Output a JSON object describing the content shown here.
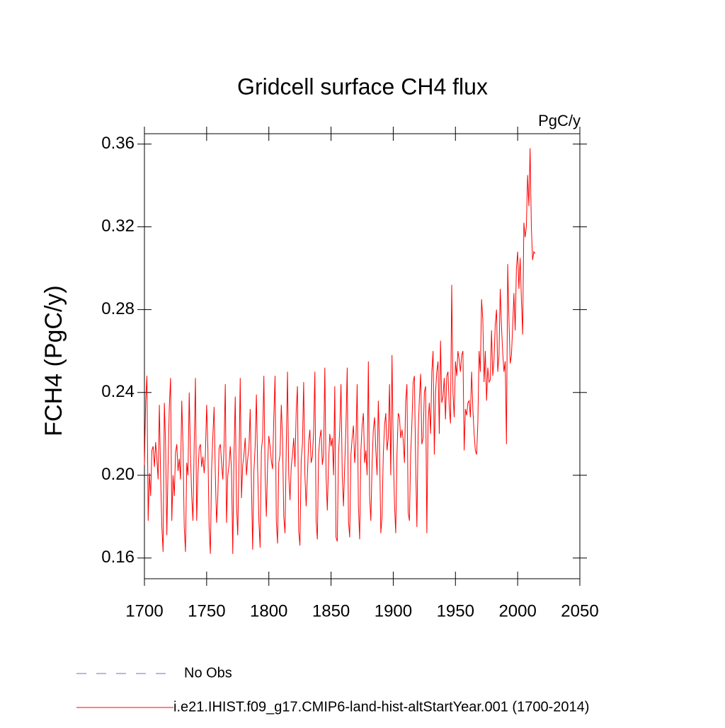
{
  "chart_data": {
    "type": "line",
    "title": "Gridcell surface CH4 flux",
    "units": "PgC/y",
    "y_label": "FCH4  (PgC/y)",
    "xlim": [
      1700,
      2050
    ],
    "xticks": [
      1700,
      1750,
      1800,
      1850,
      1900,
      1950,
      2000,
      2050
    ],
    "ylim": [
      0.15,
      0.365
    ],
    "yticks": [
      0.16,
      {
        "value": 0.2,
        "label": "0.20"
      },
      0.24,
      {
        "value": 0.28,
        "label": "0.28"
      },
      0.32,
      0.36
    ],
    "grid": false,
    "reference": {
      "name": "No Obs",
      "color": "#7a6fb8",
      "dashed": true
    },
    "x": [
      1700,
      1701,
      1702,
      1703,
      1704,
      1705,
      1706,
      1707,
      1708,
      1709,
      1710,
      1711,
      1712,
      1713,
      1714,
      1715,
      1716,
      1717,
      1718,
      1719,
      1720,
      1721,
      1722,
      1723,
      1724,
      1725,
      1726,
      1727,
      1728,
      1729,
      1730,
      1731,
      1732,
      1733,
      1734,
      1735,
      1736,
      1737,
      1738,
      1739,
      1740,
      1741,
      1742,
      1743,
      1744,
      1745,
      1746,
      1747,
      1748,
      1749,
      1750,
      1751,
      1752,
      1753,
      1754,
      1755,
      1756,
      1757,
      1758,
      1759,
      1760,
      1761,
      1762,
      1763,
      1764,
      1765,
      1766,
      1767,
      1768,
      1769,
      1770,
      1771,
      1772,
      1773,
      1774,
      1775,
      1776,
      1777,
      1778,
      1779,
      1780,
      1781,
      1782,
      1783,
      1784,
      1785,
      1786,
      1787,
      1788,
      1789,
      1790,
      1791,
      1792,
      1793,
      1794,
      1795,
      1796,
      1797,
      1798,
      1799,
      1800,
      1801,
      1802,
      1803,
      1804,
      1805,
      1806,
      1807,
      1808,
      1809,
      1810,
      1811,
      1812,
      1813,
      1814,
      1815,
      1816,
      1817,
      1818,
      1819,
      1820,
      1821,
      1822,
      1823,
      1824,
      1825,
      1826,
      1827,
      1828,
      1829,
      1830,
      1831,
      1832,
      1833,
      1834,
      1835,
      1836,
      1837,
      1838,
      1839,
      1840,
      1841,
      1842,
      1843,
      1844,
      1845,
      1846,
      1847,
      1848,
      1849,
      1850,
      1851,
      1852,
      1853,
      1854,
      1855,
      1856,
      1857,
      1858,
      1859,
      1860,
      1861,
      1862,
      1863,
      1864,
      1865,
      1866,
      1867,
      1868,
      1869,
      1870,
      1871,
      1872,
      1873,
      1874,
      1875,
      1876,
      1877,
      1878,
      1879,
      1880,
      1881,
      1882,
      1883,
      1884,
      1885,
      1886,
      1887,
      1888,
      1889,
      1890,
      1891,
      1892,
      1893,
      1894,
      1895,
      1896,
      1897,
      1898,
      1899,
      1900,
      1901,
      1902,
      1903,
      1904,
      1905,
      1906,
      1907,
      1908,
      1909,
      1910,
      1911,
      1912,
      1913,
      1914,
      1915,
      1916,
      1917,
      1918,
      1919,
      1920,
      1921,
      1922,
      1923,
      1924,
      1925,
      1926,
      1927,
      1928,
      1929,
      1930,
      1931,
      1932,
      1933,
      1934,
      1935,
      1936,
      1937,
      1938,
      1939,
      1940,
      1941,
      1942,
      1943,
      1944,
      1945,
      1946,
      1947,
      1948,
      1949,
      1950,
      1951,
      1952,
      1953,
      1954,
      1955,
      1956,
      1957,
      1958,
      1959,
      1960,
      1961,
      1962,
      1963,
      1964,
      1965,
      1966,
      1967,
      1968,
      1969,
      1970,
      1971,
      1972,
      1973,
      1974,
      1975,
      1976,
      1977,
      1978,
      1979,
      1980,
      1981,
      1982,
      1983,
      1984,
      1985,
      1986,
      1987,
      1988,
      1989,
      1990,
      1991,
      1992,
      1993,
      1994,
      1995,
      1996,
      1997,
      1998,
      1999,
      2000,
      2001,
      2002,
      2003,
      2004,
      2005,
      2006,
      2007,
      2008,
      2009,
      2010,
      2011,
      2012,
      2013,
      2014
    ],
    "series": [
      {
        "name": "i.e21.IHIST.f09_g17.CMIP6-land-hist-altStartYear.001 (1700-2014)",
        "color": "#ff0000",
        "values": [
          0.205,
          0.236,
          0.248,
          0.178,
          0.201,
          0.19,
          0.212,
          0.214,
          0.204,
          0.216,
          0.208,
          0.198,
          0.234,
          0.2,
          0.175,
          0.163,
          0.235,
          0.215,
          0.171,
          0.205,
          0.233,
          0.247,
          0.178,
          0.2,
          0.19,
          0.211,
          0.215,
          0.202,
          0.208,
          0.198,
          0.236,
          0.214,
          0.175,
          0.163,
          0.206,
          0.2,
          0.24,
          0.21,
          0.19,
          0.178,
          0.215,
          0.247,
          0.178,
          0.2,
          0.213,
          0.215,
          0.204,
          0.209,
          0.201,
          0.21,
          0.234,
          0.213,
          0.175,
          0.162,
          0.203,
          0.219,
          0.233,
          0.2,
          0.177,
          0.19,
          0.213,
          0.215,
          0.206,
          0.198,
          0.214,
          0.244,
          0.177,
          0.2,
          0.205,
          0.214,
          0.202,
          0.162,
          0.21,
          0.238,
          0.186,
          0.171,
          0.205,
          0.247,
          0.189,
          0.205,
          0.21,
          0.218,
          0.2,
          0.208,
          0.213,
          0.232,
          0.196,
          0.164,
          0.202,
          0.214,
          0.239,
          0.203,
          0.178,
          0.165,
          0.212,
          0.218,
          0.248,
          0.201,
          0.18,
          0.205,
          0.219,
          0.214,
          0.207,
          0.203,
          0.228,
          0.248,
          0.178,
          0.167,
          0.206,
          0.21,
          0.234,
          0.218,
          0.18,
          0.172,
          0.213,
          0.25,
          0.2,
          0.188,
          0.204,
          0.21,
          0.218,
          0.204,
          0.231,
          0.243,
          0.173,
          0.166,
          0.207,
          0.215,
          0.245,
          0.2,
          0.185,
          0.2,
          0.216,
          0.222,
          0.206,
          0.209,
          0.221,
          0.25,
          0.178,
          0.169,
          0.21,
          0.218,
          0.222,
          0.205,
          0.21,
          0.252,
          0.2,
          0.183,
          0.206,
          0.22,
          0.214,
          0.218,
          0.2,
          0.243,
          0.17,
          0.168,
          0.21,
          0.222,
          0.244,
          0.2,
          0.185,
          0.205,
          0.224,
          0.252,
          0.178,
          0.17,
          0.21,
          0.218,
          0.224,
          0.206,
          0.216,
          0.244,
          0.185,
          0.169,
          0.212,
          0.224,
          0.23,
          0.206,
          0.212,
          0.2,
          0.255,
          0.19,
          0.178,
          0.206,
          0.222,
          0.228,
          0.212,
          0.2,
          0.236,
          0.213,
          0.172,
          0.18,
          0.21,
          0.224,
          0.23,
          0.212,
          0.218,
          0.244,
          0.2,
          0.258,
          0.213,
          0.186,
          0.172,
          0.21,
          0.23,
          0.228,
          0.218,
          0.222,
          0.217,
          0.206,
          0.236,
          0.244,
          0.182,
          0.178,
          0.21,
          0.225,
          0.245,
          0.248,
          0.206,
          0.175,
          0.22,
          0.237,
          0.249,
          0.215,
          0.218,
          0.24,
          0.243,
          0.172,
          0.226,
          0.235,
          0.22,
          0.25,
          0.26,
          0.21,
          0.24,
          0.25,
          0.255,
          0.22,
          0.265,
          0.235,
          0.238,
          0.247,
          0.227,
          0.248,
          0.25,
          0.233,
          0.225,
          0.292,
          0.24,
          0.228,
          0.255,
          0.248,
          0.26,
          0.256,
          0.25,
          0.258,
          0.26,
          0.212,
          0.232,
          0.229,
          0.235,
          0.236,
          0.228,
          0.25,
          0.232,
          0.22,
          0.212,
          0.21,
          0.225,
          0.26,
          0.25,
          0.285,
          0.275,
          0.245,
          0.26,
          0.236,
          0.252,
          0.245,
          0.246,
          0.27,
          0.248,
          0.256,
          0.273,
          0.28,
          0.25,
          0.258,
          0.29,
          0.272,
          0.259,
          0.25,
          0.255,
          0.215,
          0.302,
          0.275,
          0.254,
          0.258,
          0.272,
          0.288,
          0.27,
          0.3,
          0.308,
          0.29,
          0.305,
          0.285,
          0.268,
          0.322,
          0.315,
          0.32,
          0.345,
          0.33,
          0.358,
          0.32,
          0.304,
          0.308,
          0.307
        ]
      }
    ]
  }
}
